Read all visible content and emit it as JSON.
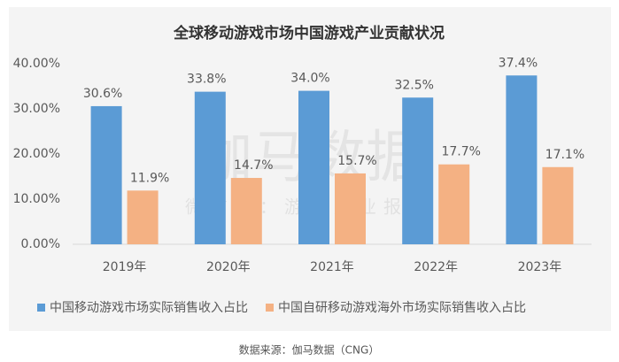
{
  "chart_data": {
    "type": "bar",
    "title": "全球移动游戏市场中国游戏产业贡献状况",
    "categories": [
      "2019年",
      "2020年",
      "2021年",
      "2022年",
      "2023年"
    ],
    "series": [
      {
        "name": "中国移动游戏市场实际销售收入占比",
        "color": "#5b9bd5",
        "values": [
          30.6,
          33.8,
          34.0,
          32.5,
          37.4
        ],
        "value_labels": [
          "30.6%",
          "33.8%",
          "34.0%",
          "32.5%",
          "37.4%"
        ]
      },
      {
        "name": "中国自研移动游戏海外市场实际销售收入占比",
        "color": "#f4b183",
        "values": [
          11.9,
          14.7,
          15.7,
          17.7,
          17.1
        ],
        "value_labels": [
          "11.9%",
          "14.7%",
          "15.7%",
          "17.7%",
          "17.1%"
        ]
      }
    ],
    "ylim": [
      0,
      40
    ],
    "yticks": [
      {
        "value": 0,
        "label": "0.00%"
      },
      {
        "value": 10,
        "label": "10.00%"
      },
      {
        "value": 20,
        "label": "20.00%"
      },
      {
        "value": 30,
        "label": "30.00%"
      },
      {
        "value": 40,
        "label": "40.00%"
      }
    ],
    "legend": "bottom",
    "watermark": "伽马数据",
    "watermark_sub": "微信号：游戏产业报告",
    "source": "数据来源：伽马数据（CNG）"
  }
}
